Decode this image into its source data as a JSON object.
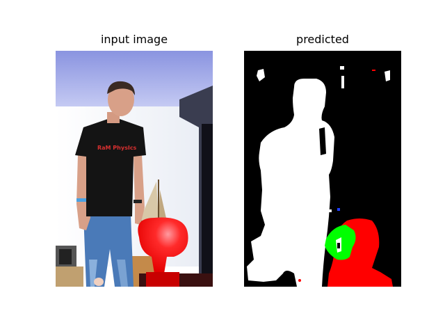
{
  "figure": {
    "left_title": "input image",
    "right_title": "predicted"
  },
  "segmentation_colors": {
    "background": "#000000",
    "person": "#ffffff",
    "chair": "#ff0000",
    "plant": "#00ff00"
  },
  "photo_shirt_text": "RaM PhysIcs"
}
